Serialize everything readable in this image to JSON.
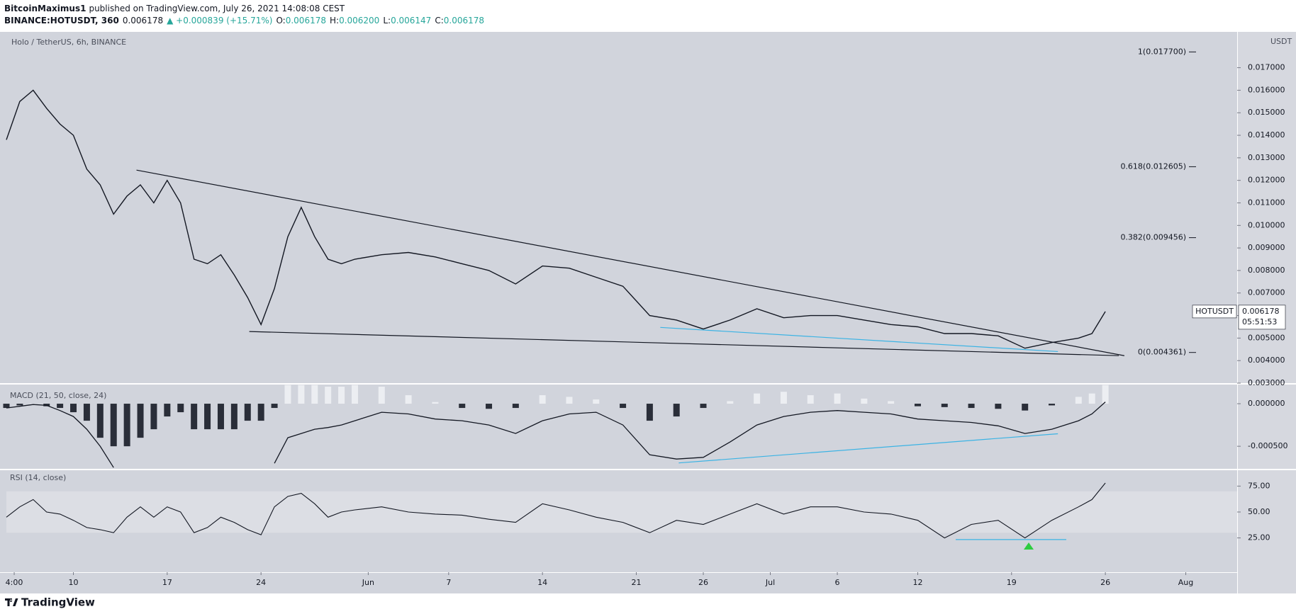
{
  "header": {
    "author": "BitcoinMaximus1",
    "published": "published on TradingView.com, July 26, 2021 14:08:08 CEST",
    "symbol": "BINANCE:HOTUSDT, 360",
    "last": "0.006178",
    "change": "▲ +0.000839 (+15.71%)",
    "ohlc": [
      {
        "label": "O:",
        "value": "0.006178"
      },
      {
        "label": "H:",
        "value": "0.006200"
      },
      {
        "label": "L:",
        "value": "0.006147"
      },
      {
        "label": "C:",
        "value": "0.006178"
      }
    ]
  },
  "footer": {
    "brand": "TradingView"
  },
  "chart_data": {
    "type": "line",
    "title": "Holo / TetherUS, 6h, BINANCE",
    "y_unit": "USDT",
    "x": [
      "2021-05-05",
      "2021-05-06",
      "2021-05-07",
      "2021-05-08",
      "2021-05-09",
      "2021-05-10",
      "2021-05-11",
      "2021-05-12",
      "2021-05-13",
      "2021-05-14",
      "2021-05-15",
      "2021-05-16",
      "2021-05-17",
      "2021-05-18",
      "2021-05-19",
      "2021-05-20",
      "2021-05-21",
      "2021-05-22",
      "2021-05-23",
      "2021-05-24",
      "2021-05-25",
      "2021-05-26",
      "2021-05-27",
      "2021-05-28",
      "2021-05-29",
      "2021-05-30",
      "2021-05-31",
      "2021-06-02",
      "2021-06-04",
      "2021-06-06",
      "2021-06-08",
      "2021-06-10",
      "2021-06-12",
      "2021-06-14",
      "2021-06-16",
      "2021-06-18",
      "2021-06-20",
      "2021-06-22",
      "2021-06-24",
      "2021-06-26",
      "2021-06-28",
      "2021-06-30",
      "2021-07-02",
      "2021-07-04",
      "2021-07-06",
      "2021-07-08",
      "2021-07-10",
      "2021-07-12",
      "2021-07-14",
      "2021-07-16",
      "2021-07-18",
      "2021-07-20",
      "2021-07-22",
      "2021-07-24",
      "2021-07-25",
      "2021-07-26"
    ],
    "xlim": [
      "2021-05-05T00:00",
      "2021-08-04T20:00"
    ],
    "xticks": [
      {
        "value": "2021-05-05T14:00",
        "label": "4:00"
      },
      {
        "value": "2021-05-10",
        "label": "10"
      },
      {
        "value": "2021-05-17",
        "label": "17"
      },
      {
        "value": "2021-05-24",
        "label": "24"
      },
      {
        "value": "2021-06-01",
        "label": "Jun"
      },
      {
        "value": "2021-06-07",
        "label": "7"
      },
      {
        "value": "2021-06-14",
        "label": "14"
      },
      {
        "value": "2021-06-21",
        "label": "21"
      },
      {
        "value": "2021-06-26",
        "label": "26"
      },
      {
        "value": "2021-07-01",
        "label": "Jul"
      },
      {
        "value": "2021-07-06",
        "label": "6"
      },
      {
        "value": "2021-07-12",
        "label": "12"
      },
      {
        "value": "2021-07-19",
        "label": "19"
      },
      {
        "value": "2021-07-26",
        "label": "26"
      },
      {
        "value": "2021-08-01",
        "label": "Aug"
      }
    ],
    "ylim": [
      0.003,
      0.01859
    ],
    "yticks": [
      {
        "value": 0.003,
        "label": "0.003000"
      },
      {
        "value": 0.004,
        "label": "0.004000"
      },
      {
        "value": 0.005,
        "label": "0.005000"
      },
      {
        "value": 0.006,
        "label": "0.006000"
      },
      {
        "value": 0.007,
        "label": "0.007000"
      },
      {
        "value": 0.008,
        "label": "0.008000"
      },
      {
        "value": 0.009,
        "label": "0.009000"
      },
      {
        "value": 0.01,
        "label": "0.010000"
      },
      {
        "value": 0.011,
        "label": "0.011000"
      },
      {
        "value": 0.012,
        "label": "0.012000"
      },
      {
        "value": 0.013,
        "label": "0.013000"
      },
      {
        "value": 0.014,
        "label": "0.014000"
      },
      {
        "value": 0.015,
        "label": "0.015000"
      },
      {
        "value": 0.016,
        "label": "0.016000"
      },
      {
        "value": 0.017,
        "label": "0.017000"
      }
    ],
    "series": [
      {
        "color": "#131722",
        "values": [
          0.0138,
          0.0155,
          0.016,
          0.0152,
          0.0145,
          0.014,
          0.0125,
          0.0118,
          0.0105,
          0.0113,
          0.0118,
          0.011,
          0.012,
          0.011,
          0.0085,
          0.0083,
          0.0087,
          0.0078,
          0.0068,
          0.0056,
          0.0072,
          0.0095,
          0.0108,
          0.0095,
          0.0085,
          0.0083,
          0.0085,
          0.0087,
          0.0088,
          0.0086,
          0.0083,
          0.008,
          0.0074,
          0.0082,
          0.0081,
          0.0077,
          0.0073,
          0.006,
          0.0058,
          0.0054,
          0.0058,
          0.0063,
          0.0059,
          0.006,
          0.006,
          0.0058,
          0.0056,
          0.0055,
          0.0052,
          0.0052,
          0.0051,
          0.00455,
          0.0048,
          0.005,
          0.0052,
          0.006178
        ]
      }
    ],
    "trendlines": [
      {
        "color": "#131722",
        "x": [
          "2021-05-14T17:00",
          "2021-07-27T10:00"
        ],
        "y": [
          0.012456,
          0.004218
        ]
      },
      {
        "color": "#131722",
        "x": [
          "2021-05-23T03:00",
          "2021-07-27T00:00"
        ],
        "y": [
          0.00529,
          0.00422
        ]
      },
      {
        "color": "#3bb3e4",
        "x": [
          "2021-06-22T19:00",
          "2021-07-22T11:00"
        ],
        "y": [
          0.005474,
          0.0044
        ]
      }
    ],
    "annotations": [
      {
        "value": 0.0177,
        "label": "1(0.017700)"
      },
      {
        "value": 0.012605,
        "label": "0.618(0.012605)"
      },
      {
        "value": 0.009456,
        "label": "0.382(0.009456)"
      },
      {
        "value": 0.004361,
        "label": "0(0.004361)"
      }
    ],
    "price_tag": {
      "symbol": "HOTUSDT",
      "value": 0.006178,
      "countdown": "05:51:53"
    },
    "macd": {
      "title": "MACD (21, 50, close, 24)",
      "ylim": [
        -0.000765,
        0.000225
      ],
      "yticks": [
        {
          "value": 0,
          "label": "0.000000"
        },
        {
          "value": -0.0005,
          "label": "-0.000500"
        }
      ],
      "histogram": {
        "up_color": "#eceef2",
        "down_color": "#2a2e39",
        "values": [
          -5e-05,
          -2e-05,
          0,
          -3e-05,
          -5e-05,
          -0.0001,
          -0.0002,
          -0.0004,
          -0.0005,
          -0.0005,
          -0.0004,
          -0.0003,
          -0.00015,
          -0.0001,
          -0.0003,
          -0.0003,
          -0.0003,
          -0.0003,
          -0.0002,
          -0.0002,
          -5e-05,
          0.00022,
          0.00022,
          0.00022,
          0.0002,
          0.0002,
          0.00022,
          0.0002,
          0.0001,
          2e-05,
          -5e-05,
          -6e-05,
          -5e-05,
          0.0001,
          8e-05,
          5e-05,
          -5e-05,
          -0.0002,
          -0.00015,
          -5e-05,
          3e-05,
          0.00012,
          0.00014,
          0.0001,
          0.00012,
          6e-05,
          3e-05,
          -3e-05,
          -4e-05,
          -5e-05,
          -6e-05,
          -8e-05,
          -2e-05,
          8e-05,
          0.00012,
          0.00022
        ]
      },
      "line": {
        "color": "#131722",
        "values": [
          -5e-05,
          -3e-05,
          -1e-05,
          -2e-05,
          -8e-05,
          -0.00015,
          -0.0003,
          -0.0005,
          -0.00075,
          null,
          null,
          null,
          null,
          null,
          null,
          null,
          null,
          null,
          null,
          null,
          -0.0007,
          -0.0004,
          -0.00035,
          -0.0003,
          -0.00028,
          -0.00025,
          -0.0002,
          -0.0001,
          -0.00012,
          -0.00018,
          -0.0002,
          -0.00025,
          -0.00035,
          -0.0002,
          -0.00012,
          -0.0001,
          -0.00025,
          -0.0006,
          -0.00065,
          -0.00063,
          -0.00045,
          -0.00025,
          -0.00015,
          -0.0001,
          -8e-05,
          -0.0001,
          -0.00012,
          -0.00018,
          -0.0002,
          -0.00022,
          -0.00026,
          -0.00035,
          -0.0003,
          -0.0002,
          -0.00012,
          2e-05
        ]
      },
      "trendline": {
        "color": "#3bb3e4",
        "x": [
          "2021-06-24T04:00",
          "2021-07-22T11:00"
        ],
        "y": [
          -0.000696,
          -0.000353
        ]
      }
    },
    "rsi": {
      "title": "RSI (14, close)",
      "ylim": [
        -8.1,
        90.3
      ],
      "yticks": [
        {
          "value": 75,
          "label": "75.00"
        },
        {
          "value": 50,
          "label": "50.00"
        },
        {
          "value": 25,
          "label": "25.00"
        }
      ],
      "band": [
        30,
        70
      ],
      "band_color": "#dcdee4",
      "line": {
        "color": "#131722",
        "values": [
          45,
          55,
          62,
          50,
          48,
          42,
          35,
          33,
          30,
          45,
          55,
          45,
          55,
          50,
          30,
          35,
          45,
          40,
          33,
          28,
          55,
          65,
          68,
          58,
          45,
          50,
          52,
          55,
          50,
          48,
          47,
          43,
          40,
          58,
          52,
          45,
          40,
          30,
          42,
          38,
          48,
          58,
          48,
          55,
          55,
          50,
          48,
          42,
          25,
          38,
          42,
          25,
          42,
          55,
          62,
          78
        ]
      },
      "trendline": {
        "color": "#3bb3e4",
        "x": [
          "2021-07-14T20:00",
          "2021-07-23T02:00"
        ],
        "y": [
          23.4,
          23.4
        ]
      }
    }
  }
}
